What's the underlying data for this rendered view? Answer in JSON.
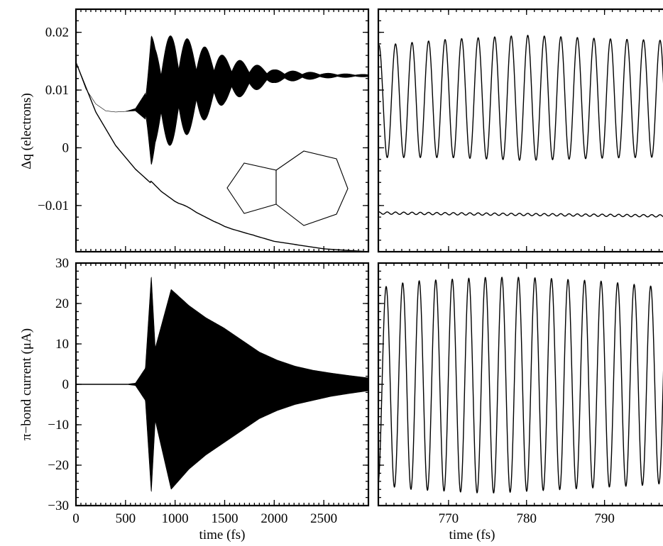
{
  "chart_data": [
    {
      "panel": "top-left",
      "type": "line",
      "xlabel": "",
      "ylabel": "Δq (electrons)",
      "xlim": [
        0,
        2950
      ],
      "ylim": [
        -0.018,
        0.024
      ],
      "x_ticks": [
        0,
        500,
        1000,
        1500,
        2000,
        2500
      ],
      "x_tick_labels": [],
      "y_ticks": [
        -0.01,
        0,
        0.01,
        0.02
      ],
      "y_tick_labels": [
        "−0.01",
        "0",
        "0.01",
        "0.02"
      ],
      "series": [
        {
          "role": "upper trace (oscillating)",
          "x": [
            0,
            100,
            200,
            300,
            400,
            500,
            600,
            700,
            760,
            800,
            1000,
            1500,
            2000,
            2500,
            2950
          ],
          "y": [
            0.0148,
            0.0102,
            0.0076,
            0.0064,
            0.0062,
            0.0063,
            0.0066,
            0.0072,
            0.0082,
            0.009,
            0.0102,
            0.0118,
            0.0124,
            0.0125,
            0.0125
          ],
          "envelope_max": [
            0.0148,
            0.0102,
            0.0076,
            0.0064,
            0.0062,
            0.0063,
            0.0068,
            0.0095,
            0.0198,
            0.0188,
            0.0192,
            0.016,
            0.0135,
            0.0129,
            0.0127
          ],
          "envelope_min": [
            0.0148,
            0.0102,
            0.0076,
            0.0064,
            0.0062,
            0.0063,
            0.0064,
            0.005,
            -0.0028,
            0.001,
            -0.0002,
            0.0078,
            0.0112,
            0.012,
            0.0123
          ]
        },
        {
          "role": "lower trace (decaying)",
          "x": [
            0,
            200,
            400,
            600,
            800,
            1000,
            1500,
            2000,
            2500,
            2950
          ],
          "y": [
            0.0148,
            0.0062,
            0.0004,
            -0.0037,
            -0.0068,
            -0.0093,
            -0.0137,
            -0.0162,
            -0.0175,
            -0.018
          ]
        }
      ]
    },
    {
      "panel": "top-right",
      "type": "line",
      "xlabel": "",
      "ylabel": "",
      "xlim": [
        761,
        798.5
      ],
      "ylim": [
        -0.018,
        0.024
      ],
      "x_ticks": [
        770,
        780,
        790
      ],
      "x_tick_labels": [],
      "series": [
        {
          "role": "upper trace (zoom)",
          "oscillation_period_fs": 2.12,
          "x": [
            761.5,
            770,
            780,
            790,
            798
          ],
          "y_max": [
            0.0178,
            0.0188,
            0.0195,
            0.0189,
            0.0186
          ],
          "y_min": [
            -0.0017,
            -0.0017,
            -0.0022,
            -0.0018,
            -0.0016
          ]
        },
        {
          "role": "lower trace (zoom)",
          "oscillation_period_fs": 1.06,
          "x": [
            761.5,
            798
          ],
          "y_center": [
            -0.0113,
            -0.0118
          ],
          "amplitude": 0.0002
        }
      ]
    },
    {
      "panel": "bottom-left",
      "type": "line",
      "xlabel": "time (fs)",
      "ylabel": "π−bond current (μA)",
      "xlim": [
        0,
        2950
      ],
      "ylim": [
        -30,
        30
      ],
      "x_ticks": [
        0,
        500,
        1000,
        1500,
        2000,
        2500
      ],
      "x_tick_labels": [
        "0",
        "500",
        "1000",
        "1500",
        "2000",
        "2500"
      ],
      "y_ticks": [
        -30,
        -20,
        -10,
        0,
        10,
        20,
        30
      ],
      "y_tick_labels": [
        "−30",
        "−20",
        "−10",
        "0",
        "10",
        "20",
        "30"
      ],
      "series": [
        {
          "role": "current envelope",
          "x": [
            0,
            500,
            600,
            700,
            760,
            800,
            960,
            1140,
            1310,
            1490,
            1670,
            1850,
            2030,
            2210,
            2390,
            2570,
            2750,
            2950
          ],
          "envelope_max": [
            0,
            0,
            0.3,
            4,
            27,
            9,
            23.5,
            19.5,
            16.5,
            14,
            11,
            8,
            6,
            4.5,
            3.5,
            2.8,
            2.2,
            1.6
          ],
          "envelope_min": [
            0,
            0,
            -0.3,
            -4,
            -27,
            -9,
            -26,
            -21,
            -17.5,
            -14.5,
            -11.5,
            -8.5,
            -6.5,
            -5,
            -4,
            -3,
            -2.3,
            -1.6
          ]
        }
      ]
    },
    {
      "panel": "bottom-right",
      "type": "line",
      "xlabel": "time (fs)",
      "ylabel": "",
      "xlim": [
        761,
        798.5
      ],
      "ylim": [
        -30,
        30
      ],
      "x_ticks": [
        770,
        780,
        790
      ],
      "x_tick_labels": [
        "770",
        "780",
        "790"
      ],
      "series": [
        {
          "role": "current (zoom)",
          "oscillation_period_fs": 2.12,
          "x": [
            761.5,
            765,
            770,
            775,
            780,
            785,
            790,
            795,
            798
          ],
          "y_max": [
            24,
            25.5,
            26,
            26.5,
            26.5,
            26,
            25.5,
            24.5,
            24
          ],
          "y_min": [
            -25,
            -26,
            -26.5,
            -27,
            -26.5,
            -26,
            -25.5,
            -25,
            -24.5
          ]
        }
      ]
    }
  ]
}
